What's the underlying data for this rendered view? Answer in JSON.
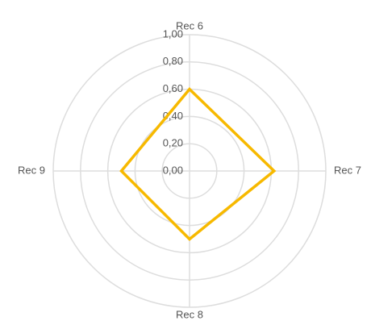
{
  "chart_data": {
    "type": "radar",
    "categories": [
      "Rec 6",
      "Rec 7",
      "Rec 8",
      "Rec 9"
    ],
    "series": [
      {
        "color": "#f7b900",
        "values": [
          0.6,
          0.62,
          0.5,
          0.5
        ]
      }
    ],
    "ylim": [
      0,
      1
    ],
    "yticks": [
      {
        "value": 0,
        "label": "0,00"
      },
      {
        "value": 0.2,
        "label": "0,20"
      },
      {
        "value": 0.4,
        "label": "0,40"
      },
      {
        "value": 0.6,
        "label": "0,60"
      },
      {
        "value": 0.8,
        "label": "0,80"
      },
      {
        "value": 1,
        "label": "1,00"
      }
    ],
    "grid": true
  }
}
